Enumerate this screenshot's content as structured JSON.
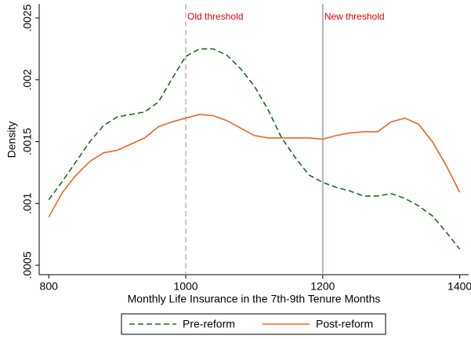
{
  "chart_data": {
    "type": "line",
    "xlabel": "Monthly Life Insurance in the 7th-9th Tenure Months",
    "ylabel": "Density",
    "x": [
      800,
      820,
      840,
      860,
      880,
      900,
      920,
      940,
      960,
      980,
      1000,
      1020,
      1040,
      1060,
      1080,
      1100,
      1120,
      1140,
      1160,
      1180,
      1200,
      1220,
      1240,
      1260,
      1280,
      1300,
      1320,
      1340,
      1360,
      1380,
      1400
    ],
    "series": [
      {
        "name": "Pre-reform",
        "color": "#1a6b1a",
        "dash": "dashed",
        "values": [
          0.00103,
          0.00118,
          0.00134,
          0.0015,
          0.00163,
          0.0017,
          0.00172,
          0.00174,
          0.00182,
          0.00201,
          0.00219,
          0.00225,
          0.00225,
          0.0022,
          0.00209,
          0.00195,
          0.00176,
          0.00153,
          0.00137,
          0.00123,
          0.00117,
          0.00113,
          0.0011,
          0.00106,
          0.00106,
          0.00108,
          0.00104,
          0.00098,
          0.0009,
          0.00077,
          0.00063
        ]
      },
      {
        "name": "Post-reform",
        "color": "#f0641e",
        "dash": "solid",
        "values": [
          0.00089,
          0.00109,
          0.00123,
          0.00134,
          0.00141,
          0.00143,
          0.00148,
          0.00153,
          0.00162,
          0.00166,
          0.00169,
          0.00172,
          0.00171,
          0.00167,
          0.00161,
          0.00155,
          0.00153,
          0.00153,
          0.00153,
          0.00153,
          0.00152,
          0.00155,
          0.00157,
          0.00158,
          0.00158,
          0.00166,
          0.00169,
          0.00164,
          0.0015,
          0.00131,
          0.00109
        ]
      }
    ],
    "annotations": [
      {
        "text": "Old threshold",
        "x": 1000,
        "color": "#c8c8c8",
        "dash": "dashed"
      },
      {
        "text": "New threshold",
        "x": 1200,
        "color": "#a8b8c0",
        "dash": "solid"
      }
    ],
    "xlim": [
      786,
      1413
    ],
    "xticks": [
      800,
      1000,
      1200,
      1400
    ],
    "ylim": [
      0.000424,
      0.002614
    ],
    "yticks": [
      {
        "value": 0.0005,
        "label": ".0005"
      },
      {
        "value": 0.001,
        "label": ".001"
      },
      {
        "value": 0.0015,
        "label": ".0015"
      },
      {
        "value": 0.002,
        "label": ".002"
      },
      {
        "value": 0.0025,
        "label": ".0025"
      }
    ],
    "legend": "bottom"
  }
}
